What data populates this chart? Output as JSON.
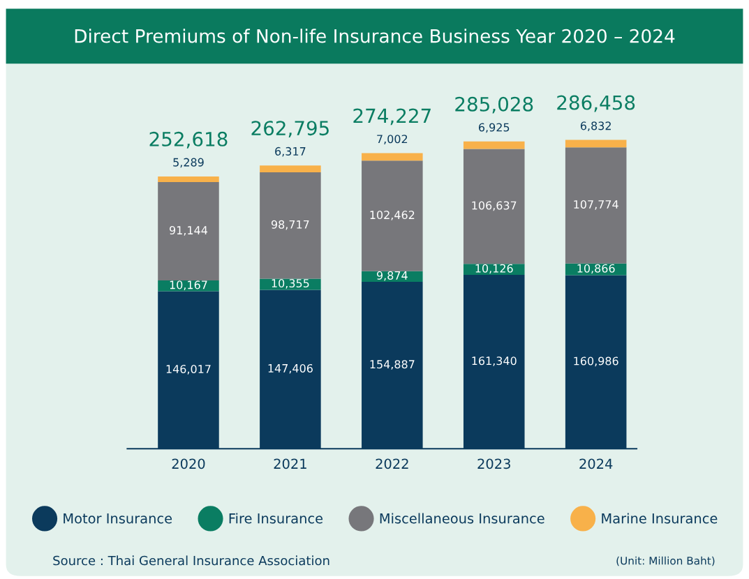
{
  "chart_data": {
    "type": "bar",
    "stacked": true,
    "title": "Direct Premiums of Non-life Insurance Business Year 2020 – 2024",
    "categories": [
      "2020",
      "2021",
      "2022",
      "2023",
      "2024"
    ],
    "series": [
      {
        "name": "Motor Insurance",
        "color": "#0b3a5c",
        "values": [
          146017,
          147406,
          154887,
          161340,
          160986
        ],
        "value_labels": [
          "146,017",
          "147,406",
          "154,887",
          "161,340",
          "160,986"
        ]
      },
      {
        "name": "Fire Insurance",
        "color": "#0a7d62",
        "values": [
          10167,
          10355,
          9874,
          10126,
          10866
        ],
        "value_labels": [
          "10,167",
          "10,355",
          "9,874",
          "10,126",
          "10,866"
        ]
      },
      {
        "name": "Miscellaneous Insurance",
        "color": "#77777b",
        "values": [
          91144,
          98717,
          102462,
          106637,
          107774
        ],
        "value_labels": [
          "91,144",
          "98,717",
          "102,462",
          "106,637",
          "107,774"
        ]
      },
      {
        "name": "Marine Insurance",
        "color": "#f8b14a",
        "values": [
          5289,
          6317,
          7002,
          6925,
          6832
        ],
        "value_labels": [
          "5,289",
          "6,317",
          "7,002",
          "6,925",
          "6,832"
        ]
      }
    ],
    "totals": [
      "252,618",
      "262,795",
      "274,227",
      "285,028",
      "286,458"
    ],
    "legend": "bottom",
    "marker": "circle",
    "tick_labels": "x",
    "annotations": [
      "Source : Thai General Insurance Association",
      "(Unit: Million Baht)"
    ]
  }
}
